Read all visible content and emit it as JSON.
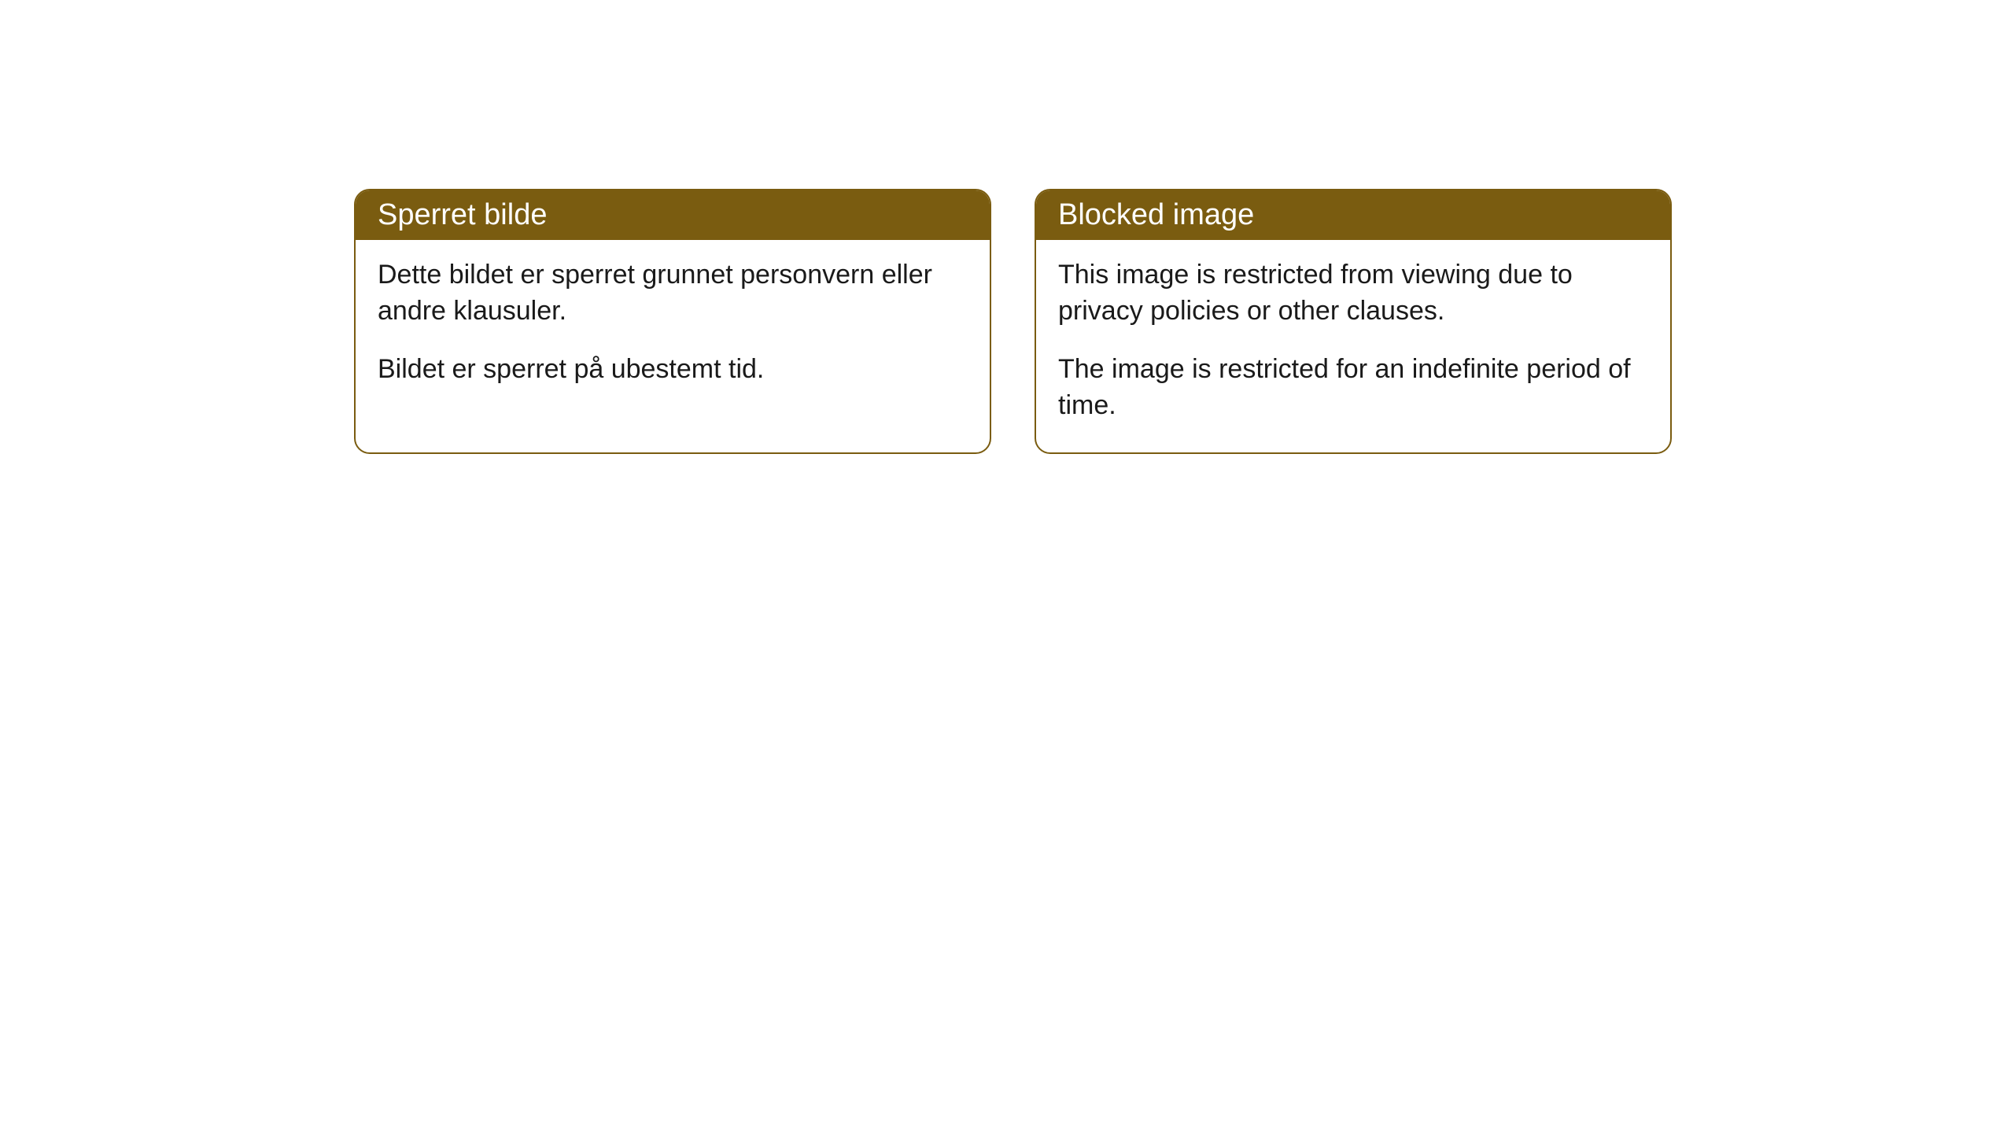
{
  "cards": [
    {
      "title": "Sperret bilde",
      "paragraph1": "Dette bildet er sperret grunnet personvern eller andre klausuler.",
      "paragraph2": "Bildet er sperret på ubestemt tid."
    },
    {
      "title": "Blocked image",
      "paragraph1": "This image is restricted from viewing due to privacy policies or other clauses.",
      "paragraph2": "The image is restricted for an indefinite period of time."
    }
  ],
  "styling": {
    "header_background": "#7a5c10",
    "header_text_color": "#ffffff",
    "border_color": "#7a5c10",
    "body_background": "#ffffff",
    "body_text_color": "#1a1a1a",
    "border_radius": 20,
    "title_fontsize": 38,
    "body_fontsize": 34
  }
}
